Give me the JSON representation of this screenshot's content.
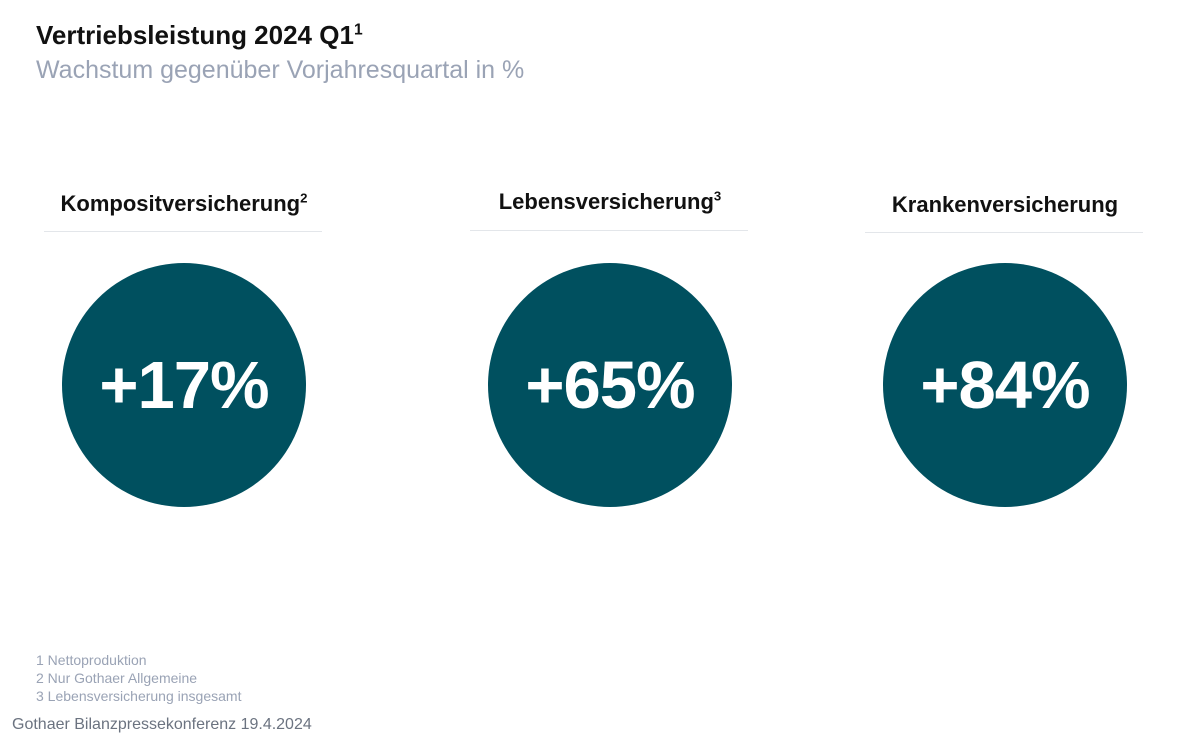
{
  "header": {
    "title": "Vertriebsleistung 2024 Q1",
    "title_sup": "1",
    "subtitle": "Wachstum gegenüber Vorjahresquartal in %"
  },
  "segments": [
    {
      "label": "Kompositversicherung",
      "sup": "2",
      "value": "+17%"
    },
    {
      "label": "Lebensversicherung",
      "sup": "3",
      "value": "+65%"
    },
    {
      "label": "Krankenversicherung",
      "sup": "",
      "value": "+84%"
    }
  ],
  "footnotes": [
    "1 Nettoproduktion",
    "2 Nur Gothaer Allgemeine",
    "3 Lebensversicherung insgesamt"
  ],
  "footer": {
    "text": "Gothaer Bilanzpressekonferenz 19.4.2024"
  },
  "colors": {
    "circle": "#00505f",
    "subtitle": "#9aa3b5",
    "title": "#111111"
  }
}
